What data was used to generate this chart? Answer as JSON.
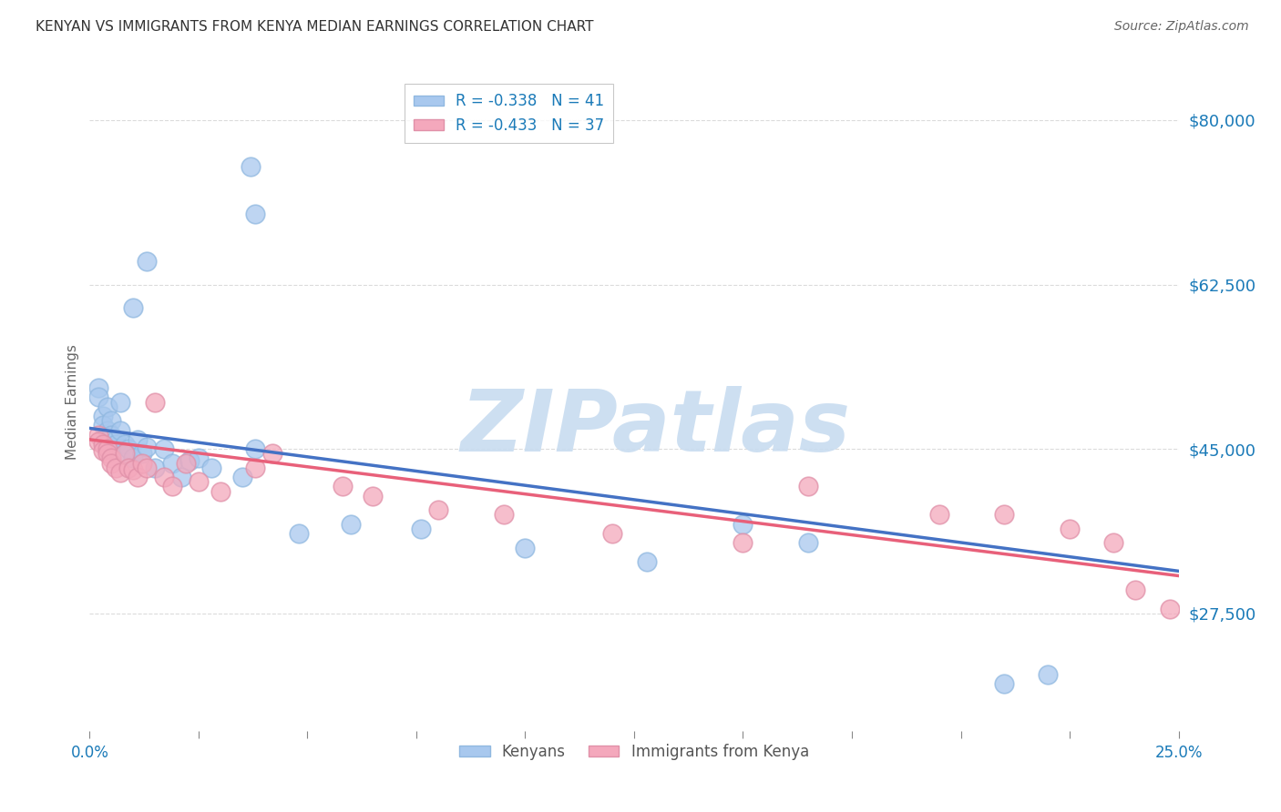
{
  "title": "KENYAN VS IMMIGRANTS FROM KENYA MEDIAN EARNINGS CORRELATION CHART",
  "source": "Source: ZipAtlas.com",
  "ylabel": "Median Earnings",
  "watermark": "ZIPatlas",
  "xlim": [
    0.0,
    0.25
  ],
  "ylim": [
    15000,
    85000
  ],
  "xtick_positions": [
    0.0,
    0.025,
    0.05,
    0.075,
    0.1,
    0.125,
    0.15,
    0.175,
    0.2,
    0.225,
    0.25
  ],
  "xtick_labels": [
    "0.0%",
    "",
    "",
    "",
    "",
    "",
    "",
    "",
    "",
    "",
    "25.0%"
  ],
  "ytick_values": [
    27500,
    45000,
    62500,
    80000
  ],
  "ytick_labels": [
    "$27,500",
    "$45,000",
    "$62,500",
    "$80,000"
  ],
  "blue_label": "Kenyans",
  "pink_label": "Immigrants from Kenya",
  "blue_R": "-0.338",
  "blue_N": "41",
  "pink_R": "-0.433",
  "pink_N": "37",
  "blue_color": "#A8C8EE",
  "pink_color": "#F4A8BC",
  "blue_line_color": "#4472C4",
  "pink_line_color": "#E8607A",
  "background_color": "#FFFFFF",
  "grid_color": "#CCCCCC",
  "blue_line_x0": 0.0,
  "blue_line_y0": 47200,
  "blue_line_x1": 0.25,
  "blue_line_y1": 32000,
  "pink_line_x0": 0.0,
  "pink_line_y0": 46000,
  "pink_line_x1": 0.25,
  "pink_line_y1": 31500,
  "blue_x": [
    0.037,
    0.038,
    0.013,
    0.01,
    0.002,
    0.002,
    0.003,
    0.003,
    0.004,
    0.004,
    0.005,
    0.005,
    0.006,
    0.006,
    0.007,
    0.007,
    0.008,
    0.008,
    0.009,
    0.01,
    0.011,
    0.012,
    0.013,
    0.015,
    0.017,
    0.019,
    0.021,
    0.023,
    0.025,
    0.028,
    0.035,
    0.038,
    0.048,
    0.06,
    0.076,
    0.1,
    0.128,
    0.15,
    0.165,
    0.21,
    0.22
  ],
  "blue_y": [
    75000,
    70000,
    65000,
    60000,
    51500,
    50500,
    48500,
    47500,
    49500,
    47000,
    48000,
    46500,
    46000,
    45500,
    50000,
    47000,
    45500,
    44500,
    45000,
    44000,
    46000,
    44500,
    45200,
    43000,
    45000,
    43500,
    42000,
    43800,
    44000,
    43000,
    42000,
    45000,
    36000,
    37000,
    36500,
    34500,
    33000,
    37000,
    35000,
    20000,
    21000
  ],
  "pink_x": [
    0.002,
    0.002,
    0.003,
    0.003,
    0.004,
    0.004,
    0.005,
    0.005,
    0.006,
    0.007,
    0.008,
    0.009,
    0.01,
    0.011,
    0.012,
    0.013,
    0.015,
    0.017,
    0.019,
    0.022,
    0.025,
    0.03,
    0.038,
    0.042,
    0.058,
    0.065,
    0.08,
    0.095,
    0.12,
    0.15,
    0.165,
    0.195,
    0.21,
    0.225,
    0.235,
    0.24,
    0.248
  ],
  "pink_y": [
    46500,
    45800,
    45500,
    44800,
    45000,
    44500,
    44000,
    43500,
    43000,
    42500,
    44500,
    43000,
    42800,
    42000,
    43500,
    43000,
    50000,
    42000,
    41000,
    43500,
    41500,
    40500,
    43000,
    44500,
    41000,
    40000,
    38500,
    38000,
    36000,
    35000,
    41000,
    38000,
    38000,
    36500,
    35000,
    30000,
    28000
  ]
}
